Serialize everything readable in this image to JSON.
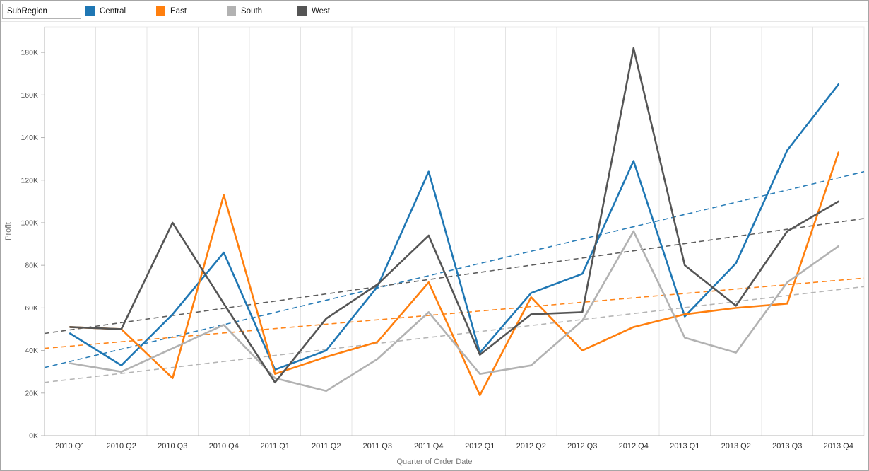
{
  "legend": {
    "title": "SubRegion",
    "items": [
      {
        "label": "Central",
        "color": "#1f77b4"
      },
      {
        "label": "East",
        "color": "#ff7f0e"
      },
      {
        "label": "South",
        "color": "#b2b2b2"
      },
      {
        "label": "West",
        "color": "#555555"
      }
    ]
  },
  "chart_data": {
    "type": "line",
    "title": "",
    "xlabel": "Quarter of Order Date",
    "ylabel": "Profit",
    "values_unit": "K",
    "ylim": [
      0,
      192
    ],
    "grid": "vertical-only",
    "legend_position": "top",
    "ytick_values": [
      0,
      20,
      40,
      60,
      80,
      100,
      120,
      140,
      160,
      180
    ],
    "ytick_labels": [
      "0K",
      "20K",
      "40K",
      "60K",
      "80K",
      "100K",
      "120K",
      "140K",
      "160K",
      "180K"
    ],
    "categories": [
      "2010 Q1",
      "2010 Q2",
      "2010 Q3",
      "2010 Q4",
      "2011 Q1",
      "2011 Q2",
      "2011 Q3",
      "2011 Q4",
      "2012 Q1",
      "2012 Q2",
      "2012 Q3",
      "2012 Q4",
      "2013 Q1",
      "2013 Q2",
      "2013 Q3",
      "2013 Q4"
    ],
    "series": [
      {
        "name": "Central",
        "color": "#1f77b4",
        "values": [
          48,
          33,
          57,
          86,
          31,
          40,
          70,
          124,
          39,
          67,
          76,
          129,
          56,
          81,
          134,
          165
        ]
      },
      {
        "name": "East",
        "color": "#ff7f0e",
        "values": [
          51,
          50,
          27,
          113,
          29,
          37,
          44,
          72,
          19,
          65,
          40,
          51,
          57,
          60,
          62,
          133
        ]
      },
      {
        "name": "South",
        "color": "#b2b2b2",
        "values": [
          34,
          30,
          41,
          52,
          27,
          21,
          36,
          58,
          29,
          33,
          54,
          96,
          46,
          39,
          72,
          89
        ]
      },
      {
        "name": "West",
        "color": "#555555",
        "values": [
          51,
          50,
          100,
          62,
          25,
          55,
          71,
          94,
          38,
          57,
          58,
          182,
          80,
          61,
          96,
          110
        ]
      }
    ],
    "trend_lines": [
      {
        "name": "Central",
        "color": "#1f77b4",
        "start": 32,
        "end": 124
      },
      {
        "name": "East",
        "color": "#ff7f0e",
        "start": 41,
        "end": 74
      },
      {
        "name": "South",
        "color": "#b2b2b2",
        "start": 25,
        "end": 70
      },
      {
        "name": "West",
        "color": "#555555",
        "start": 48,
        "end": 102
      }
    ],
    "colors": {
      "grid": "#e4e4e4",
      "axis": "#b4b4b4",
      "plot_border": "#ebebeb"
    }
  }
}
